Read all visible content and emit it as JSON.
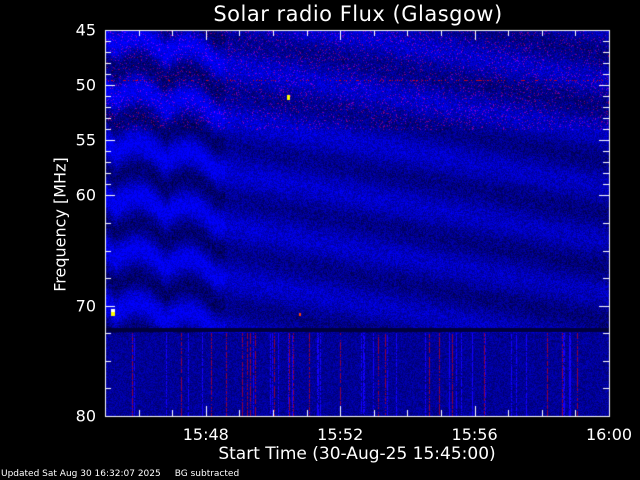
{
  "chart_data": {
    "type": "heatmap",
    "title": "Solar radio Flux (Glasgow)",
    "xlabel": "Start Time (30-Aug-25 15:45:00)",
    "ylabel": "Frequency [MHz]",
    "xlim": [
      "15:45",
      "16:00"
    ],
    "x_ticks": [
      "15:48",
      "15:52",
      "15:56",
      "16:00"
    ],
    "ylim": [
      45,
      80
    ],
    "y_inverted": true,
    "y_ticks": [
      "45",
      "50",
      "55",
      "60",
      "70",
      "80"
    ],
    "colormap": [
      "#000040",
      "#0000ff",
      "#800080",
      "#ff0000",
      "#ffff00",
      "#ffffff"
    ],
    "grid": false,
    "features": {
      "interference_line_mhz": 49.5,
      "band_edge_mhz": 72.2
    }
  },
  "footer": {
    "updated": "Updated Sat Aug 30 16:32:07 2025",
    "note": "BG subtracted"
  }
}
